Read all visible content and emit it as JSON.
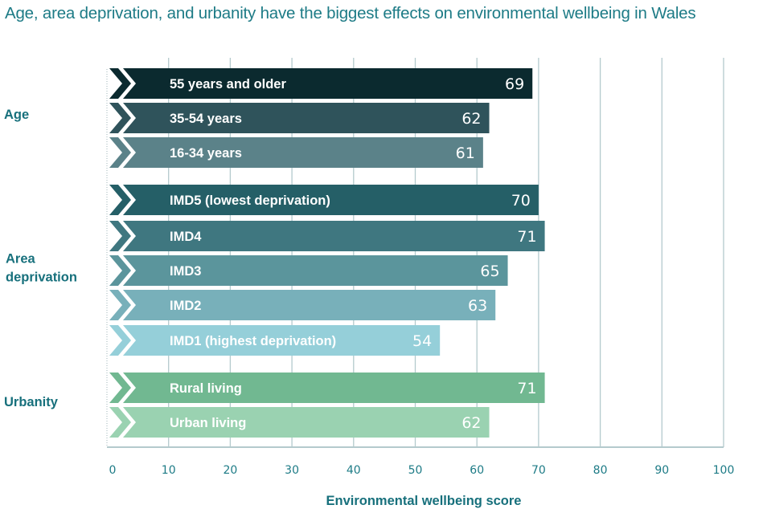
{
  "chart_data": {
    "type": "bar",
    "orientation": "horizontal",
    "title": "Age, area deprivation, and urbanity have the biggest effects on environmental wellbeing in Wales",
    "xlabel": "Environmental wellbeing score",
    "ylabel": "",
    "xlim": [
      0,
      100
    ],
    "xticks": [
      0,
      10,
      20,
      30,
      40,
      50,
      60,
      70,
      80,
      90,
      100
    ],
    "grid": true,
    "groups": [
      {
        "name": "Age",
        "bars": [
          {
            "label": "55 years and older",
            "value": 69,
            "color": "#0b2a2f"
          },
          {
            "label": "35-54 years",
            "value": 62,
            "color": "#2f535b"
          },
          {
            "label": "16-34 years",
            "value": 61,
            "color": "#5b8289"
          }
        ]
      },
      {
        "name": "Area deprivation",
        "bars": [
          {
            "label": "IMD5 (lowest deprivation)",
            "value": 70,
            "color": "#255f67"
          },
          {
            "label": "IMD4",
            "value": 71,
            "color": "#3f7780"
          },
          {
            "label": "IMD3",
            "value": 65,
            "color": "#5b959c"
          },
          {
            "label": "IMD2",
            "value": 63,
            "color": "#78b0ba"
          },
          {
            "label": "IMD1 (highest deprivation)",
            "value": 54,
            "color": "#95cfd9"
          }
        ]
      },
      {
        "name": "Urbanity",
        "bars": [
          {
            "label": "Rural living",
            "value": 71,
            "color": "#71b891"
          },
          {
            "label": "Urban living",
            "value": 62,
            "color": "#9ad2b1"
          }
        ]
      }
    ]
  },
  "colors": {
    "title": "#1d7b86",
    "axis_text": "#1d7b86",
    "gridline": "#b4cacd"
  }
}
